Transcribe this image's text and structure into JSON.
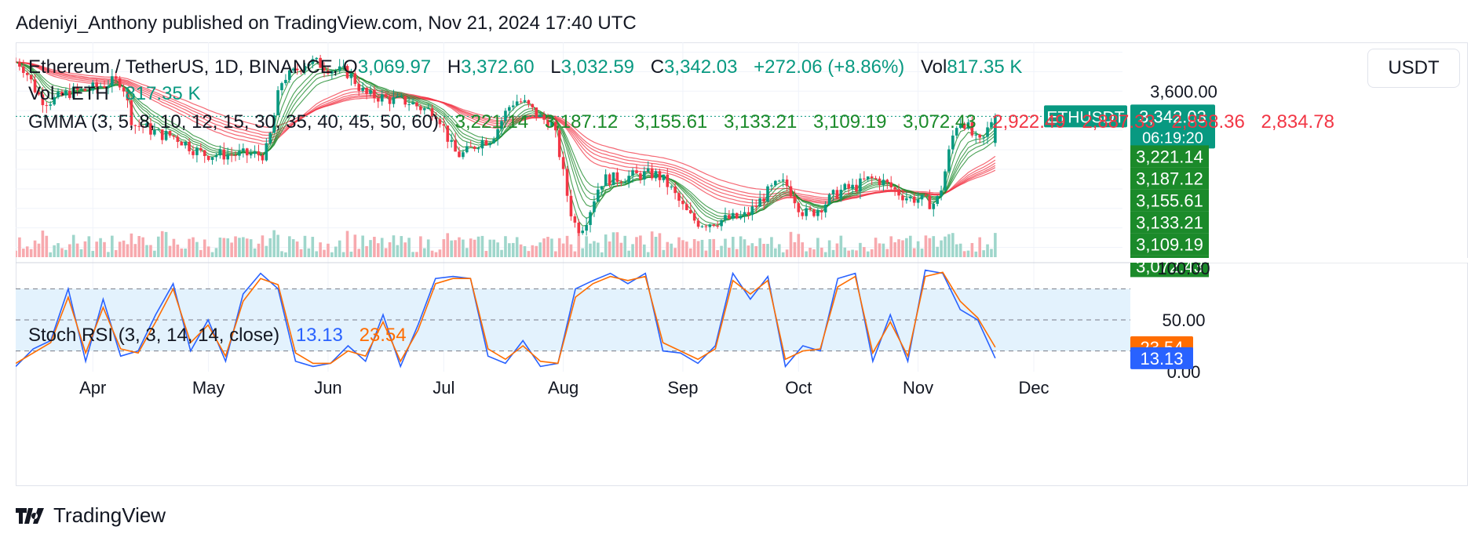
{
  "header": {
    "publish_line": "Adeniyi_Anthony published on TradingView.com, Nov 21, 2024 17:40 UTC"
  },
  "currency": "USDT",
  "footer": {
    "brand": "TradingView"
  },
  "legend": {
    "symbol": "Ethereum / TetherUS, 1D, BINANCE",
    "o_label": "O",
    "o_value": "3,069.97",
    "h_label": "H",
    "h_value": "3,372.60",
    "l_label": "L",
    "l_value": "3,032.59",
    "c_label": "C",
    "c_value": "3,342.03",
    "change": "+272.06 (+8.86%)",
    "vol_label": "Vol",
    "vol_value": "817.35 K",
    "vol_ind_label": "Vol · ETH",
    "vol_ind_value": "817.35 K",
    "gmma_label": "GMMA (3, 5, 8, 10, 12, 15, 30, 35, 40, 45, 50, 60)",
    "gmma_short_values": [
      "3,221.14",
      "3,187.12",
      "3,155.61",
      "3,133.21",
      "3,109.19",
      "3,072.43"
    ],
    "gmma_long_values": [
      "2,922.49",
      "2,887.33",
      "2,858.36",
      "2,834.78"
    ],
    "stoch_label": "Stoch RSI (3, 3, 14, 14, close)",
    "stoch_k": "13.13",
    "stoch_d": "23.54"
  },
  "colors": {
    "up": "#089981",
    "down": "#f23645",
    "short_ema": "#1b8a2a",
    "long_ema": "#f23645",
    "stoch_k": "#2962ff",
    "stoch_d": "#ff6d00",
    "band_fill": "#e3f2fd"
  },
  "chart_data": [
    {
      "type": "candlestick",
      "title": "Ethereum / TetherUS, 1D, BINANCE",
      "price_axis_labels": [
        "3,600.00"
      ],
      "ylim": [
        1900,
        4100
      ],
      "x_ticks": [
        "Apr",
        "May",
        "Jun",
        "Jul",
        "Aug",
        "Sep",
        "Oct",
        "Nov",
        "Dec"
      ],
      "last_price": {
        "label": "ETHUSDT",
        "value": "3,342.03",
        "countdown": "06:19:20"
      },
      "gmma_axis_labels": [
        "3,221.14",
        "3,187.12",
        "3,155.61",
        "3,133.21",
        "3,109.19",
        "3,072.43"
      ],
      "close_series": [
        {
          "date": "Mar 12",
          "close": 3900
        },
        {
          "date": "Mar 20",
          "close": 3500
        },
        {
          "date": "Mar 28",
          "close": 3600
        },
        {
          "date": "Apr 08",
          "close": 3700
        },
        {
          "date": "Apr 12",
          "close": 3250
        },
        {
          "date": "Apr 20",
          "close": 3150
        },
        {
          "date": "May 01",
          "close": 2950
        },
        {
          "date": "May 10",
          "close": 2950
        },
        {
          "date": "May 15",
          "close": 2950
        },
        {
          "date": "May 21",
          "close": 3750
        },
        {
          "date": "May 27",
          "close": 3900
        },
        {
          "date": "Jun 05",
          "close": 3800
        },
        {
          "date": "Jun 12",
          "close": 3550
        },
        {
          "date": "Jun 20",
          "close": 3500
        },
        {
          "date": "Jun 28",
          "close": 3400
        },
        {
          "date": "Jul 05",
          "close": 2950
        },
        {
          "date": "Jul 12",
          "close": 3100
        },
        {
          "date": "Jul 20",
          "close": 3500
        },
        {
          "date": "Jul 28",
          "close": 3300
        },
        {
          "date": "Aug 05",
          "close": 2200
        },
        {
          "date": "Aug 12",
          "close": 2700
        },
        {
          "date": "Aug 24",
          "close": 2750
        },
        {
          "date": "Sep 06",
          "close": 2250
        },
        {
          "date": "Sep 15",
          "close": 2300
        },
        {
          "date": "Sep 27",
          "close": 2650
        },
        {
          "date": "Oct 03",
          "close": 2350
        },
        {
          "date": "Oct 14",
          "close": 2600
        },
        {
          "date": "Oct 20",
          "close": 2700
        },
        {
          "date": "Oct 31",
          "close": 2500
        },
        {
          "date": "Nov 05",
          "close": 2450
        },
        {
          "date": "Nov 12",
          "close": 3300
        },
        {
          "date": "Nov 17",
          "close": 3070
        },
        {
          "date": "Nov 21",
          "close": 3342
        }
      ]
    },
    {
      "type": "line",
      "title": "Stoch RSI (3, 3, 14, 14, close)",
      "ylim": [
        0,
        100
      ],
      "y_axis_labels": [
        "100.00",
        "50.00",
        "0.00"
      ],
      "levels": [
        80,
        50,
        20
      ],
      "series": [
        {
          "name": "%K",
          "values": [
            5,
            22,
            30,
            80,
            10,
            70,
            15,
            20,
            55,
            85,
            20,
            50,
            10,
            75,
            95,
            80,
            10,
            5,
            8,
            25,
            10,
            55,
            5,
            45,
            90,
            92,
            90,
            15,
            8,
            30,
            5,
            8,
            80,
            88,
            95,
            85,
            95,
            20,
            18,
            8,
            25,
            95,
            70,
            92,
            5,
            25,
            20,
            90,
            95,
            10,
            55,
            10,
            98,
            95,
            60,
            50,
            13
          ]
        },
        {
          "name": "%D",
          "values": [
            8,
            18,
            28,
            72,
            18,
            62,
            22,
            18,
            48,
            80,
            28,
            45,
            15,
            68,
            90,
            84,
            18,
            8,
            8,
            20,
            15,
            48,
            10,
            40,
            85,
            90,
            90,
            22,
            12,
            25,
            10,
            8,
            72,
            85,
            92,
            88,
            92,
            28,
            20,
            12,
            22,
            88,
            75,
            88,
            12,
            20,
            22,
            82,
            92,
            18,
            48,
            15,
            92,
            96,
            68,
            52,
            23.54
          ]
        }
      ]
    }
  ]
}
